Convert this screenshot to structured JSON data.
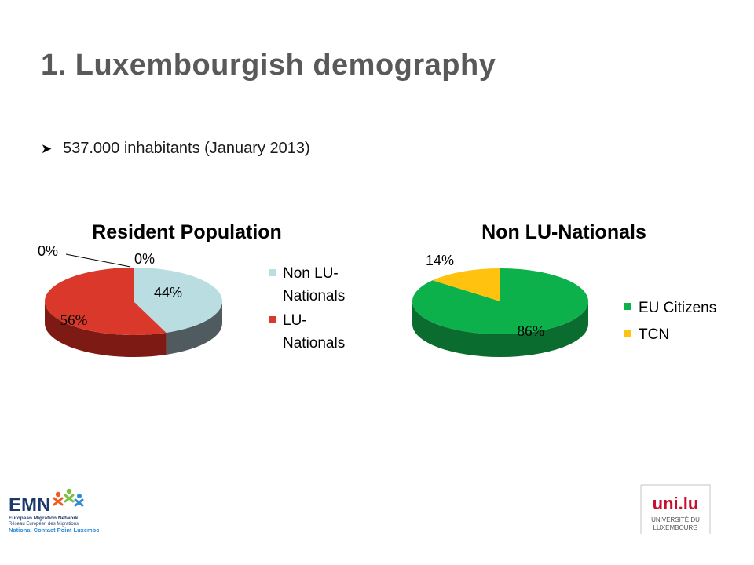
{
  "slide": {
    "title": "1. Luxembourgish demography",
    "bullet": "537.000 inhabitants (January 2013)",
    "bullet_icon": "arrow-bullet-icon"
  },
  "chart_data": [
    {
      "type": "pie",
      "title": "Resident Population",
      "slices": [
        {
          "label": "Non LU-Nationals",
          "value": 44,
          "color": "#b9dde0",
          "side_color": "#4f5b5e",
          "data_label": "44%"
        },
        {
          "label": "LU-Nationals",
          "value": 56,
          "color": "#d9382b",
          "side_color": "#7d1a13",
          "data_label": "56%"
        }
      ],
      "extra_labels": [
        "0%",
        "0%"
      ],
      "legend": [
        "Non LU-Nationals",
        "LU-Nationals"
      ],
      "legend_lines": [
        [
          "Non LU-",
          "Nationals"
        ],
        [
          "LU-",
          "Nationals"
        ]
      ],
      "legend_position": "right"
    },
    {
      "type": "pie",
      "title": "Non LU-Nationals",
      "slices": [
        {
          "label": "EU Citizens",
          "value": 86,
          "color": "#0db14b",
          "side_color": "#0a6d2f",
          "data_label": "86%"
        },
        {
          "label": "TCN",
          "value": 14,
          "color": "#ffc20e",
          "side_color": "#b38600",
          "data_label": "14%"
        }
      ],
      "legend": [
        "EU Citizens",
        "TCN"
      ],
      "legend_position": "right"
    }
  ],
  "logos": {
    "emn": {
      "name": "EMN",
      "line1": "European Migration Network",
      "line2": "Réseau Européen des Migrations",
      "line3": "National Contact Point Luxembourg",
      "colors": [
        "#f15a24",
        "#7bc043",
        "#2e8bd6",
        "#1b3a6b"
      ]
    },
    "uni": {
      "name": "uni.lu",
      "line1": "UNIVERSITÉ DU",
      "line2": "LUXEMBOURG",
      "color": "#c8102e"
    }
  }
}
